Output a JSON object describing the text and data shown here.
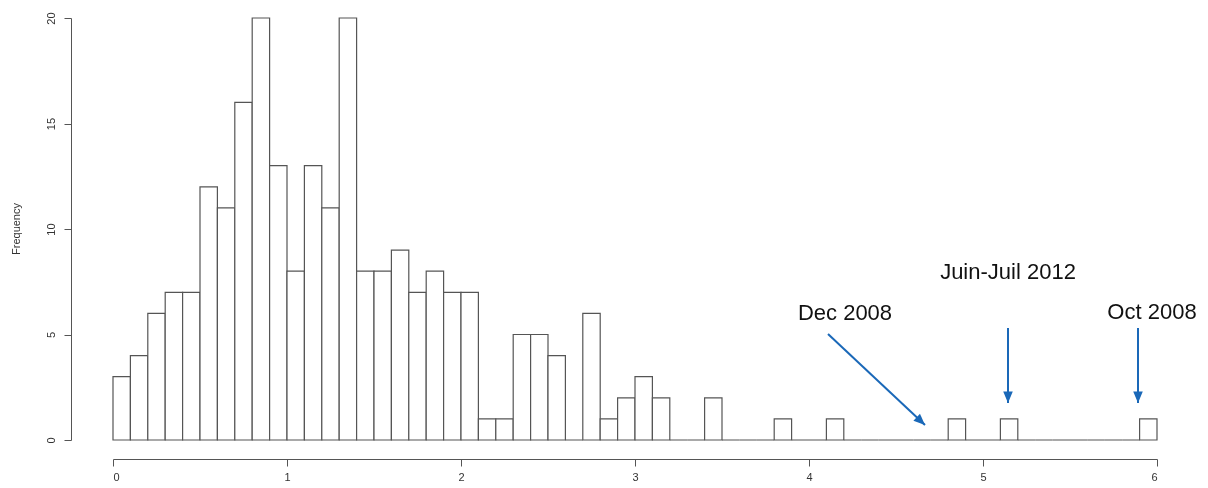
{
  "chart_data": {
    "type": "histogram",
    "ylabel": "Frequency",
    "bins": [
      0.0,
      0.1,
      0.2,
      0.3,
      0.4,
      0.5,
      0.6,
      0.7,
      0.8,
      0.9,
      1.0,
      1.1,
      1.2,
      1.3,
      1.4,
      1.5,
      1.6,
      1.7,
      1.8,
      1.9,
      2.0,
      2.1,
      2.2,
      2.3,
      2.4,
      2.5,
      2.6,
      2.7,
      2.8,
      2.9,
      3.0,
      3.1,
      3.2,
      3.3,
      3.4,
      3.5,
      3.6,
      3.7,
      3.8,
      3.9,
      4.0,
      4.1,
      4.2,
      4.3,
      4.4,
      4.5,
      4.6,
      4.7,
      4.8,
      4.9,
      5.0,
      5.1,
      5.2,
      5.3,
      5.4,
      5.5,
      5.6,
      5.7,
      5.8,
      5.9,
      6.0
    ],
    "values": [
      3,
      4,
      6,
      7,
      7,
      12,
      11,
      16,
      20,
      13,
      8,
      13,
      11,
      20,
      8,
      8,
      9,
      7,
      8,
      7,
      7,
      1,
      1,
      5,
      5,
      4,
      0,
      6,
      1,
      2,
      3,
      2,
      0,
      0,
      2,
      0,
      0,
      0,
      1,
      0,
      0,
      1,
      0,
      0,
      0,
      0,
      0,
      0,
      1,
      0,
      0,
      1,
      0,
      0,
      0,
      0,
      0,
      0,
      0,
      1
    ],
    "xlim": [
      0,
      6
    ],
    "xticks": [
      0,
      1,
      2,
      3,
      4,
      5,
      6
    ],
    "ylim": [
      0,
      20
    ],
    "yticks": [
      0,
      5,
      10,
      15,
      20
    ],
    "annotations": [
      "Dec 2008",
      "Juin-Juil 2012",
      "Oct 2008"
    ]
  }
}
